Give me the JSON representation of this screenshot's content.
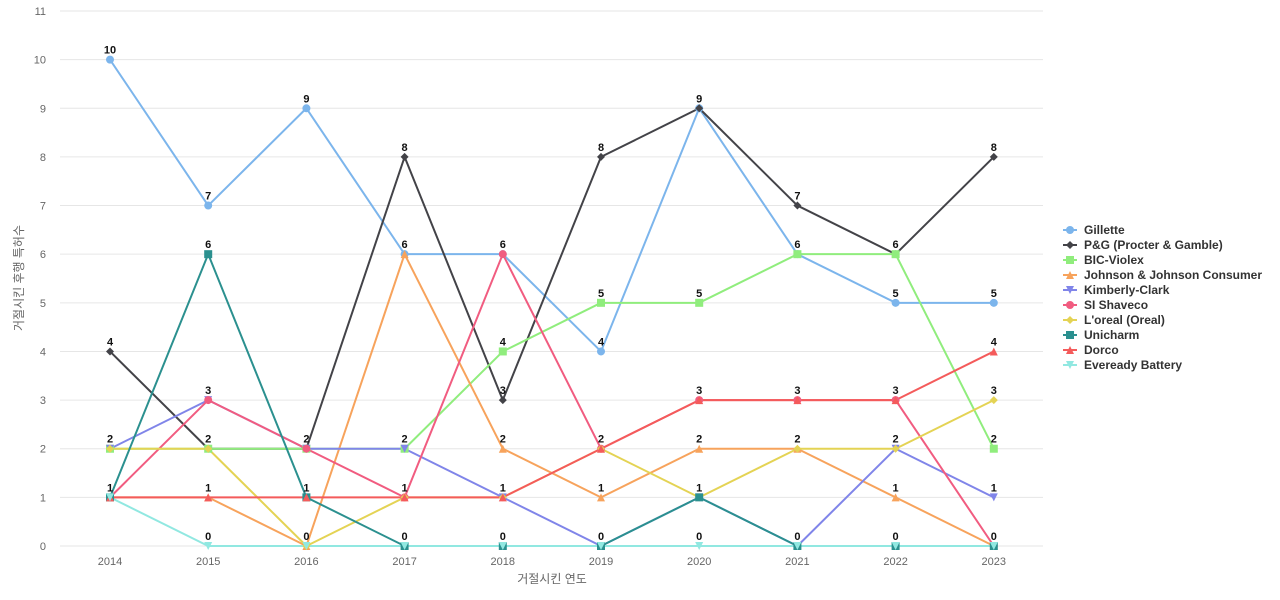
{
  "chart_data": {
    "type": "line",
    "title": "",
    "xlabel": "거절시킨 연도",
    "ylabel": "거절시킨 후행 특허수",
    "x": [
      "2014",
      "2015",
      "2016",
      "2017",
      "2018",
      "2019",
      "2020",
      "2021",
      "2022",
      "2023"
    ],
    "ylim": [
      0,
      11
    ],
    "yticks": [
      "0",
      "1",
      "2",
      "3",
      "4",
      "5",
      "6",
      "7",
      "8",
      "9",
      "10",
      "11"
    ],
    "grid": true,
    "legend_position": "right",
    "series": [
      {
        "name": "Gillette",
        "color": "#7cb5ec",
        "marker": "circle",
        "values": [
          10,
          7,
          9,
          6,
          6,
          4,
          9,
          6,
          5,
          5
        ],
        "labels": [
          "10",
          "7",
          "9",
          "6",
          "6",
          "4",
          "9",
          "6",
          "5",
          "5"
        ]
      },
      {
        "name": "P&G (Procter & Gamble)",
        "color": "#434348",
        "marker": "diamond",
        "values": [
          4,
          2,
          2,
          8,
          3,
          8,
          9,
          7,
          6,
          8
        ],
        "labels": [
          "4",
          "2",
          "2",
          "8",
          "3",
          "8",
          "9",
          "7",
          "6",
          "8"
        ]
      },
      {
        "name": "BIC-Violex",
        "color": "#90ed7d",
        "marker": "square",
        "values": [
          2,
          2,
          2,
          2,
          4,
          5,
          5,
          6,
          6,
          2
        ],
        "labels": [
          "2",
          "2",
          "2",
          "2",
          "4",
          "5",
          "5",
          "6",
          "6",
          "2"
        ]
      },
      {
        "name": "Johnson & Johnson Consumer",
        "color": "#f7a35c",
        "marker": "triangle",
        "values": [
          1,
          1,
          0,
          6,
          2,
          1,
          2,
          2,
          1,
          0
        ],
        "labels": [
          "1",
          "1",
          "0",
          "6",
          "2",
          "1",
          "2",
          "2",
          "1",
          "0"
        ]
      },
      {
        "name": "Kimberly-Clark",
        "color": "#8085e9",
        "marker": "triangle-down",
        "values": [
          2,
          3,
          2,
          2,
          1,
          0,
          1,
          0,
          2,
          1
        ],
        "labels": [
          "2",
          "3",
          "2",
          "2",
          "1",
          "0",
          "1",
          "0",
          "2",
          "1"
        ]
      },
      {
        "name": "SI Shaveco",
        "color": "#f15c80",
        "marker": "circle",
        "values": [
          1,
          3,
          2,
          1,
          6,
          2,
          3,
          3,
          3,
          0
        ],
        "labels": [
          "1",
          "3",
          "2",
          "1",
          "6",
          "2",
          "3",
          "3",
          "3",
          "0"
        ]
      },
      {
        "name": "L'oreal (Oreal)",
        "color": "#e4d354",
        "marker": "diamond",
        "values": [
          2,
          2,
          0,
          1,
          1,
          2,
          1,
          2,
          2,
          3
        ],
        "labels": [
          "2",
          "2",
          "0",
          "1",
          "1",
          "2",
          "1",
          "2",
          "2",
          "3"
        ]
      },
      {
        "name": "Unicharm",
        "color": "#2b908f",
        "marker": "square",
        "values": [
          1,
          6,
          1,
          0,
          0,
          0,
          1,
          0,
          0,
          0
        ],
        "labels": [
          "1",
          "6",
          "1",
          "0",
          "0",
          "0",
          "1",
          "0",
          "0",
          "0"
        ]
      },
      {
        "name": "Dorco",
        "color": "#f45b5b",
        "marker": "triangle",
        "values": [
          1,
          1,
          1,
          1,
          1,
          2,
          3,
          3,
          3,
          4
        ],
        "labels": [
          "1",
          "1",
          "1",
          "1",
          "1",
          "2",
          "3",
          "3",
          "3",
          "4"
        ]
      },
      {
        "name": "Eveready Battery",
        "color": "#91e8e1",
        "marker": "triangle-down",
        "values": [
          1,
          0,
          0,
          0,
          0,
          0,
          0,
          0,
          0,
          0
        ],
        "labels": [
          "1",
          "0",
          "0",
          "0",
          "0",
          "0",
          "0",
          "0",
          "0",
          "0"
        ]
      }
    ],
    "label_series_order": [
      "Gillette",
      "P&G (Procter & Gamble)",
      "Johnson & Johnson Consumer",
      "Kimberly-Clark",
      "SI Shaveco",
      "Unicharm",
      "Dorco",
      "Eveready Battery",
      "L'oreal (Oreal)",
      "BIC-Violex"
    ]
  }
}
